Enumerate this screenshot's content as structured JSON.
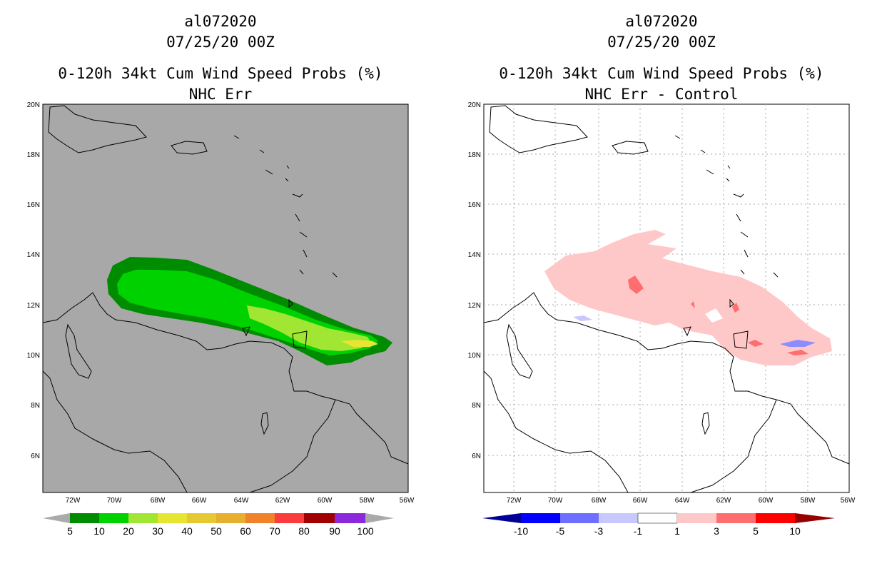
{
  "panels": [
    {
      "storm_id": "al072020",
      "datetime": "07/25/20 00Z",
      "product": "0-120h 34kt Cum Wind Speed Probs (%)",
      "subtitle": "NHC Err",
      "background_color": "#a8a8a8",
      "lat_ticks": [
        "20N",
        "18N",
        "16N",
        "14N",
        "12N",
        "10N",
        "8N",
        "6N"
      ],
      "lon_ticks": [
        "72W",
        "70W",
        "68W",
        "66W",
        "64W",
        "62W",
        "60W",
        "58W",
        "56W"
      ],
      "colorbar": {
        "labels": [
          "5",
          "10",
          "20",
          "30",
          "40",
          "50",
          "60",
          "70",
          "80",
          "90",
          "100"
        ],
        "colors": [
          "#008c00",
          "#00d200",
          "#a0e632",
          "#e6e632",
          "#e6c832",
          "#e6af2d",
          "#f08228",
          "#fa3c3c",
          "#a00000",
          "#8c28dc"
        ],
        "end_colors": [
          "#aaaaaa",
          "#aaaaaa"
        ]
      }
    },
    {
      "storm_id": "al072020",
      "datetime": "07/25/20 00Z",
      "product": "0-120h 34kt Cum Wind Speed Probs (%)",
      "subtitle": "NHC Err - Control",
      "background_color": "#ffffff",
      "lat_ticks": [
        "20N",
        "18N",
        "16N",
        "14N",
        "12N",
        "10N",
        "8N",
        "6N"
      ],
      "lon_ticks": [
        "72W",
        "70W",
        "68W",
        "66W",
        "64W",
        "62W",
        "60W",
        "58W",
        "56W"
      ],
      "colorbar": {
        "labels": [
          "-10",
          "-5",
          "-3",
          "-1",
          "1",
          "3",
          "5",
          "10"
        ],
        "colors": [
          "#0000ff",
          "#6e6eff",
          "#c8c8ff",
          "#ffffff",
          "#ffc8c8",
          "#ff6e6e",
          "#ff0000"
        ],
        "end_colors": [
          "#000096",
          "#960000"
        ]
      }
    }
  ]
}
